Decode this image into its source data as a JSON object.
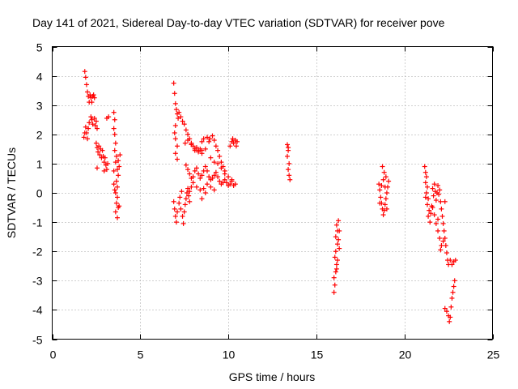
{
  "chart_data": {
    "type": "scatter",
    "title": "Day 141 of 2021, Sidereal Day-to-day VTEC variation (SDTVAR) for receiver pove",
    "xlabel": "GPS time / hours",
    "ylabel": "SDTVAR / TECUs",
    "xlim": [
      0,
      25
    ],
    "ylim": [
      -5,
      5
    ],
    "xticks": [
      0,
      5,
      10,
      15,
      20,
      25
    ],
    "yticks": [
      -5,
      -4,
      -3,
      -2,
      -1,
      0,
      1,
      2,
      3,
      4,
      5
    ],
    "grid": true,
    "marker": "+",
    "series_color": "#ff0000",
    "series": [
      {
        "name": "SDTVAR",
        "points": [
          [
            1.85,
            4.15
          ],
          [
            1.9,
            3.95
          ],
          [
            1.95,
            3.7
          ],
          [
            2.0,
            3.45
          ],
          [
            2.05,
            3.3
          ],
          [
            2.1,
            3.1
          ],
          [
            2.15,
            3.35
          ],
          [
            2.2,
            3.25
          ],
          [
            2.25,
            3.1
          ],
          [
            2.3,
            3.3
          ],
          [
            2.35,
            3.35
          ],
          [
            2.4,
            3.25
          ],
          [
            1.8,
            1.9
          ],
          [
            1.85,
            2.05
          ],
          [
            1.9,
            2.25
          ],
          [
            1.95,
            2.05
          ],
          [
            2.0,
            1.85
          ],
          [
            2.05,
            2.2
          ],
          [
            2.1,
            2.4
          ],
          [
            2.2,
            2.6
          ],
          [
            2.25,
            2.5
          ],
          [
            2.3,
            2.35
          ],
          [
            2.4,
            2.55
          ],
          [
            2.45,
            2.3
          ],
          [
            2.5,
            2.45
          ],
          [
            2.55,
            2.2
          ],
          [
            2.5,
            1.7
          ],
          [
            2.55,
            1.55
          ],
          [
            2.6,
            1.4
          ],
          [
            2.65,
            1.6
          ],
          [
            2.7,
            1.3
          ],
          [
            2.75,
            1.5
          ],
          [
            2.8,
            1.2
          ],
          [
            2.85,
            1.45
          ],
          [
            2.9,
            1.25
          ],
          [
            2.95,
            1.05
          ],
          [
            3.0,
            1.2
          ],
          [
            3.05,
            0.95
          ],
          [
            3.1,
            0.8
          ],
          [
            3.15,
            1.0
          ],
          [
            2.55,
            0.85
          ],
          [
            2.95,
            0.75
          ],
          [
            3.1,
            2.55
          ],
          [
            3.2,
            2.6
          ],
          [
            3.5,
            2.75
          ],
          [
            3.55,
            2.5
          ],
          [
            3.5,
            2.2
          ],
          [
            3.55,
            2.0
          ],
          [
            3.6,
            1.7
          ],
          [
            3.55,
            1.45
          ],
          [
            3.65,
            1.25
          ],
          [
            3.6,
            1.05
          ],
          [
            3.7,
            0.8
          ],
          [
            3.75,
            1.1
          ],
          [
            3.8,
            0.9
          ],
          [
            3.75,
            0.6
          ],
          [
            3.65,
            0.4
          ],
          [
            3.7,
            0.2
          ],
          [
            3.6,
            0.0
          ],
          [
            3.7,
            -0.15
          ],
          [
            3.65,
            -0.35
          ],
          [
            3.75,
            -0.5
          ],
          [
            3.6,
            -0.65
          ],
          [
            3.7,
            -0.85
          ],
          [
            3.8,
            -0.45
          ],
          [
            3.5,
            0.3
          ],
          [
            3.55,
            0.1
          ],
          [
            3.85,
            1.3
          ],
          [
            3.5,
            0.75
          ],
          [
            6.9,
            3.75
          ],
          [
            6.95,
            3.4
          ],
          [
            7.0,
            3.05
          ],
          [
            7.05,
            2.85
          ],
          [
            7.1,
            2.7
          ],
          [
            7.15,
            2.55
          ],
          [
            7.2,
            2.75
          ],
          [
            7.3,
            2.6
          ],
          [
            7.4,
            2.45
          ],
          [
            7.5,
            2.35
          ],
          [
            7.6,
            2.15
          ],
          [
            7.7,
            2.0
          ],
          [
            7.8,
            1.85
          ],
          [
            7.9,
            1.7
          ],
          [
            8.0,
            1.6
          ],
          [
            8.1,
            1.45
          ],
          [
            8.2,
            1.55
          ],
          [
            8.3,
            1.45
          ],
          [
            8.4,
            1.5
          ],
          [
            8.5,
            1.45
          ],
          [
            7.0,
            2.3
          ],
          [
            6.95,
            2.05
          ],
          [
            7.0,
            1.85
          ],
          [
            7.1,
            1.6
          ],
          [
            7.0,
            1.35
          ],
          [
            7.1,
            1.15
          ],
          [
            7.55,
            1.7
          ],
          [
            7.7,
            1.8
          ],
          [
            7.9,
            1.65
          ],
          [
            8.1,
            1.5
          ],
          [
            8.3,
            1.4
          ],
          [
            8.5,
            1.35
          ],
          [
            8.7,
            1.5
          ],
          [
            8.9,
            1.75
          ],
          [
            9.1,
            1.95
          ],
          [
            9.2,
            1.8
          ],
          [
            9.3,
            1.6
          ],
          [
            9.4,
            1.45
          ],
          [
            9.5,
            1.25
          ],
          [
            9.6,
            1.05
          ],
          [
            9.7,
            0.9
          ],
          [
            9.8,
            0.75
          ],
          [
            8.5,
            1.75
          ],
          [
            8.6,
            1.85
          ],
          [
            8.8,
            1.9
          ],
          [
            8.95,
            1.85
          ],
          [
            7.6,
            0.95
          ],
          [
            7.7,
            0.8
          ],
          [
            7.8,
            0.65
          ],
          [
            7.9,
            0.5
          ],
          [
            8.0,
            0.55
          ],
          [
            8.1,
            0.75
          ],
          [
            8.2,
            0.85
          ],
          [
            8.3,
            0.65
          ],
          [
            8.4,
            0.5
          ],
          [
            8.5,
            0.6
          ],
          [
            8.6,
            0.75
          ],
          [
            8.7,
            0.9
          ],
          [
            8.8,
            0.75
          ],
          [
            8.9,
            0.55
          ],
          [
            9.0,
            0.45
          ],
          [
            9.1,
            0.5
          ],
          [
            9.2,
            0.6
          ],
          [
            9.3,
            0.7
          ],
          [
            9.4,
            0.55
          ],
          [
            9.5,
            0.4
          ],
          [
            9.6,
            0.3
          ],
          [
            9.7,
            0.35
          ],
          [
            9.8,
            0.45
          ],
          [
            9.9,
            0.35
          ],
          [
            10.0,
            0.25
          ],
          [
            10.1,
            0.3
          ],
          [
            10.2,
            0.4
          ],
          [
            10.3,
            0.25
          ],
          [
            10.4,
            0.3
          ],
          [
            9.0,
            1.2
          ],
          [
            9.2,
            1.05
          ],
          [
            9.4,
            1.0
          ],
          [
            9.6,
            0.85
          ],
          [
            9.8,
            0.65
          ],
          [
            10.0,
            0.55
          ],
          [
            10.2,
            0.45
          ],
          [
            7.8,
            0.05
          ],
          [
            7.9,
            0.2
          ],
          [
            8.0,
            0.35
          ],
          [
            8.2,
            0.2
          ],
          [
            8.4,
            0.1
          ],
          [
            8.6,
            0.15
          ],
          [
            8.8,
            0.3
          ],
          [
            9.0,
            0.2
          ],
          [
            9.2,
            0.1
          ],
          [
            8.5,
            -0.2
          ],
          [
            8.7,
            0.0
          ],
          [
            6.9,
            -0.3
          ],
          [
            6.95,
            -0.55
          ],
          [
            7.0,
            -0.8
          ],
          [
            7.05,
            -1.0
          ],
          [
            7.1,
            -0.65
          ],
          [
            7.2,
            -0.35
          ],
          [
            7.3,
            -0.55
          ],
          [
            7.4,
            -0.8
          ],
          [
            7.45,
            -1.05
          ],
          [
            7.5,
            -0.65
          ],
          [
            7.55,
            -0.4
          ],
          [
            7.6,
            -0.2
          ],
          [
            7.65,
            0.0
          ],
          [
            7.7,
            0.15
          ],
          [
            7.75,
            -0.1
          ],
          [
            7.8,
            -0.3
          ],
          [
            7.35,
            0.05
          ],
          [
            7.25,
            -0.15
          ],
          [
            10.1,
            1.6
          ],
          [
            10.2,
            1.75
          ],
          [
            10.3,
            1.7
          ],
          [
            10.4,
            1.8
          ],
          [
            10.5,
            1.75
          ],
          [
            10.45,
            1.6
          ],
          [
            10.25,
            1.85
          ],
          [
            13.35,
            1.65
          ],
          [
            13.4,
            1.45
          ],
          [
            13.35,
            1.25
          ],
          [
            13.45,
            1.0
          ],
          [
            13.4,
            0.8
          ],
          [
            13.45,
            0.6
          ],
          [
            13.5,
            0.45
          ],
          [
            13.4,
            1.55
          ],
          [
            16.0,
            -3.4
          ],
          [
            16.05,
            -3.15
          ],
          [
            16.0,
            -2.9
          ],
          [
            16.1,
            -2.7
          ],
          [
            16.15,
            -2.45
          ],
          [
            16.05,
            -2.2
          ],
          [
            16.1,
            -2.0
          ],
          [
            16.2,
            -1.75
          ],
          [
            16.1,
            -1.5
          ],
          [
            16.2,
            -1.3
          ],
          [
            16.15,
            -1.1
          ],
          [
            16.25,
            -0.95
          ],
          [
            16.3,
            -1.3
          ],
          [
            16.25,
            -1.6
          ],
          [
            16.3,
            -1.9
          ],
          [
            16.2,
            -2.3
          ],
          [
            16.15,
            -2.6
          ],
          [
            18.55,
            0.3
          ],
          [
            18.6,
            0.1
          ],
          [
            18.65,
            -0.15
          ],
          [
            18.7,
            -0.35
          ],
          [
            18.75,
            -0.55
          ],
          [
            18.8,
            -0.75
          ],
          [
            18.85,
            -0.6
          ],
          [
            18.9,
            -0.4
          ],
          [
            18.95,
            -0.2
          ],
          [
            19.0,
            0.0
          ],
          [
            19.05,
            0.2
          ],
          [
            19.1,
            0.4
          ],
          [
            18.95,
            0.55
          ],
          [
            18.85,
            0.7
          ],
          [
            18.75,
            0.9
          ],
          [
            18.8,
            0.45
          ],
          [
            18.7,
            0.25
          ],
          [
            18.6,
            -0.35
          ],
          [
            19.0,
            -0.55
          ],
          [
            18.9,
            0.2
          ],
          [
            21.15,
            0.9
          ],
          [
            21.2,
            0.7
          ],
          [
            21.25,
            0.55
          ],
          [
            21.2,
            0.35
          ],
          [
            21.3,
            0.2
          ],
          [
            21.25,
            0.0
          ],
          [
            21.35,
            -0.2
          ],
          [
            21.3,
            -0.4
          ],
          [
            21.4,
            -0.6
          ],
          [
            21.35,
            -0.8
          ],
          [
            21.45,
            -1.0
          ],
          [
            21.5,
            -0.7
          ],
          [
            21.55,
            -0.45
          ],
          [
            21.6,
            0.15
          ],
          [
            21.65,
            -0.1
          ],
          [
            21.7,
            0.3
          ],
          [
            21.75,
            0.05
          ],
          [
            21.8,
            -0.25
          ],
          [
            21.85,
            0.0
          ],
          [
            21.9,
            0.25
          ],
          [
            21.95,
            -0.05
          ],
          [
            22.0,
            0.1
          ],
          [
            22.05,
            -0.3
          ],
          [
            22.1,
            -0.55
          ],
          [
            22.15,
            -0.8
          ],
          [
            22.2,
            -1.05
          ],
          [
            22.25,
            -1.3
          ],
          [
            22.3,
            -1.55
          ],
          [
            22.35,
            -1.8
          ],
          [
            22.4,
            -2.05
          ],
          [
            22.45,
            -2.3
          ],
          [
            22.5,
            -2.45
          ],
          [
            22.6,
            -2.3
          ],
          [
            22.7,
            -2.45
          ],
          [
            22.8,
            -2.35
          ],
          [
            22.9,
            -2.3
          ],
          [
            21.6,
            -0.5
          ],
          [
            21.7,
            -0.75
          ],
          [
            21.8,
            -1.05
          ],
          [
            21.9,
            -1.3
          ],
          [
            22.0,
            -1.55
          ],
          [
            22.1,
            -1.8
          ],
          [
            22.2,
            -1.65
          ],
          [
            22.05,
            -1.95
          ],
          [
            22.3,
            -3.95
          ],
          [
            22.4,
            -4.05
          ],
          [
            22.5,
            -4.2
          ],
          [
            22.55,
            -4.4
          ],
          [
            22.6,
            -4.25
          ],
          [
            22.65,
            -3.9
          ],
          [
            22.7,
            -3.6
          ],
          [
            22.75,
            -3.4
          ],
          [
            22.8,
            -3.2
          ],
          [
            22.85,
            -3.0
          ],
          [
            21.2,
            -0.15
          ],
          [
            21.9,
            -0.9
          ],
          [
            22.3,
            -0.3
          ]
        ]
      }
    ]
  }
}
